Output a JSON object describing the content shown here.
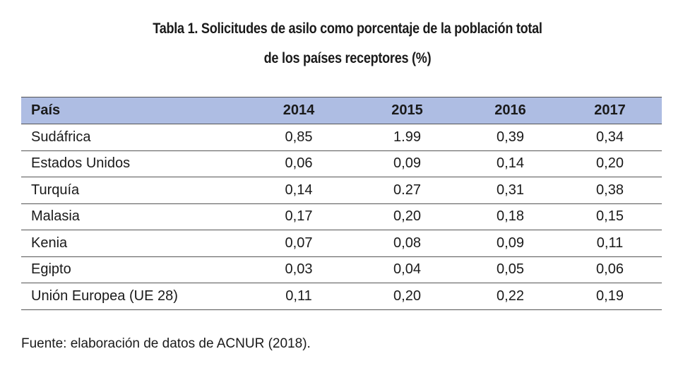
{
  "title": {
    "line1": "Tabla 1. Solicitudes de asilo como porcentaje de la población total",
    "line2": "de los países receptores (%)"
  },
  "table": {
    "headers": [
      "País",
      "2014",
      "2015",
      "2016",
      "2017"
    ],
    "rows": [
      [
        "Sudáfrica",
        "0,85",
        "1.99",
        "0,39",
        "0,34"
      ],
      [
        "Estados Unidos",
        "0,06",
        "0,09",
        "0,14",
        "0,20"
      ],
      [
        "Turquía",
        "0,14",
        "0.27",
        "0,31",
        "0,38"
      ],
      [
        "Malasia",
        "0,17",
        "0,20",
        "0,18",
        "0,15"
      ],
      [
        "Kenia",
        "0,07",
        "0,08",
        "0,09",
        "0,11"
      ],
      [
        "Egipto",
        "0,03",
        "0,04",
        "0,05",
        "0,06"
      ],
      [
        "Unión Europea (UE 28)",
        "0,11",
        "0,20",
        "0,22",
        "0,19"
      ]
    ]
  },
  "source": "Fuente: elaboración de datos de ACNUR (2018).",
  "colors": {
    "header_bg": "#aebde3",
    "rule": "#555555",
    "text": "#1a1a1a"
  }
}
